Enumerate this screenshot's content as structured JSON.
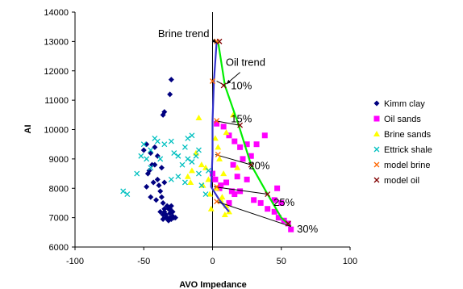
{
  "chart_data": {
    "type": "scatter",
    "xlabel": "AVO Impedance",
    "ylabel": "AI",
    "xlim": [
      -100,
      100
    ],
    "ylim": [
      6000,
      14000
    ],
    "xticks": [
      -100,
      -50,
      0,
      50,
      100
    ],
    "yticks": [
      6000,
      7000,
      8000,
      9000,
      10000,
      11000,
      12000,
      13000,
      14000
    ],
    "grid": false,
    "legend_position": "right",
    "series": [
      {
        "name": "Kimm clay",
        "marker": "diamond",
        "color": "#000080",
        "points": [
          [
            -30,
            11700
          ],
          [
            -31,
            11200
          ],
          [
            -35,
            10600
          ],
          [
            -36,
            10500
          ],
          [
            -50,
            9300
          ],
          [
            -48,
            9500
          ],
          [
            -45,
            9200
          ],
          [
            -42,
            9400
          ],
          [
            -40,
            9100
          ],
          [
            -44,
            8800
          ],
          [
            -46,
            8600
          ],
          [
            -47,
            8500
          ],
          [
            -43,
            8200
          ],
          [
            -48,
            8050
          ],
          [
            -45,
            7700
          ],
          [
            -41,
            7600
          ],
          [
            -38,
            7900
          ],
          [
            -36,
            7500
          ],
          [
            -35,
            7300
          ],
          [
            -34,
            7100
          ],
          [
            -33,
            7000
          ],
          [
            -32,
            6900
          ],
          [
            -31,
            7000
          ],
          [
            -30,
            6950
          ],
          [
            -29,
            7050
          ],
          [
            -28,
            7000
          ],
          [
            -27,
            7000
          ],
          [
            -30,
            7200
          ],
          [
            -32,
            7300
          ],
          [
            -35,
            7200
          ],
          [
            -36,
            7100
          ],
          [
            -33,
            7400
          ],
          [
            -30,
            7400
          ],
          [
            -37,
            7700
          ],
          [
            -39,
            8100
          ],
          [
            -37,
            8700
          ],
          [
            -35,
            8200
          ],
          [
            -42,
            8800
          ],
          [
            -40,
            8300
          ],
          [
            -38,
            7200
          ],
          [
            -36,
            6950
          ],
          [
            -31,
            7150
          ],
          [
            -34,
            7000
          ],
          [
            -29,
            7200
          ],
          [
            -31,
            7300
          ]
        ]
      },
      {
        "name": "Oil sands",
        "marker": "square",
        "color": "#ff00ff",
        "points": [
          [
            3,
            10200
          ],
          [
            8,
            10100
          ],
          [
            12,
            9800
          ],
          [
            16,
            9600
          ],
          [
            20,
            9400
          ],
          [
            25,
            9500
          ],
          [
            32,
            9500
          ],
          [
            38,
            9800
          ],
          [
            28,
            9100
          ],
          [
            22,
            9000
          ],
          [
            15,
            8800
          ],
          [
            18,
            8400
          ],
          [
            10,
            8200
          ],
          [
            0,
            8500
          ],
          [
            2,
            8300
          ],
          [
            6,
            8100
          ],
          [
            14,
            7900
          ],
          [
            16,
            7800
          ],
          [
            25,
            8300
          ],
          [
            30,
            7600
          ],
          [
            35,
            7500
          ],
          [
            40,
            7300
          ],
          [
            45,
            7200
          ],
          [
            48,
            7000
          ],
          [
            47,
            8000
          ],
          [
            45,
            7600
          ],
          [
            50,
            7500
          ],
          [
            52,
            6900
          ],
          [
            55,
            6800
          ],
          [
            57,
            6600
          ],
          [
            5,
            8000
          ],
          [
            12,
            7500
          ],
          [
            20,
            7900
          ]
        ]
      },
      {
        "name": "Brine sands",
        "marker": "triangle",
        "color": "#ffff00",
        "points": [
          [
            -10,
            10400
          ],
          [
            -12,
            9200
          ],
          [
            -15,
            8600
          ],
          [
            -8,
            8800
          ],
          [
            -5,
            8700
          ],
          [
            -3,
            8300
          ],
          [
            -7,
            8100
          ],
          [
            -2,
            7800
          ],
          [
            5,
            9000
          ],
          [
            8,
            8500
          ],
          [
            3,
            8000
          ],
          [
            7,
            7700
          ],
          [
            10,
            7400
          ],
          [
            12,
            7200
          ],
          [
            9,
            7100
          ],
          [
            6,
            7600
          ],
          [
            -1,
            7300
          ],
          [
            2,
            9700
          ],
          [
            10,
            9900
          ],
          [
            4,
            9400
          ],
          [
            15,
            10500
          ],
          [
            -18,
            8400
          ],
          [
            -16,
            8200
          ],
          [
            18,
            8700
          ]
        ]
      },
      {
        "name": "Ettrick shale",
        "marker": "x",
        "color": "#00c0c0",
        "points": [
          [
            -65,
            7900
          ],
          [
            -62,
            7800
          ],
          [
            -55,
            8500
          ],
          [
            -50,
            9500
          ],
          [
            -48,
            9000
          ],
          [
            -45,
            8700
          ],
          [
            -42,
            9700
          ],
          [
            -40,
            9600
          ],
          [
            -38,
            9000
          ],
          [
            -35,
            9500
          ],
          [
            -30,
            9600
          ],
          [
            -28,
            9200
          ],
          [
            -25,
            9100
          ],
          [
            -22,
            8800
          ],
          [
            -20,
            9400
          ],
          [
            -18,
            9000
          ],
          [
            -15,
            9800
          ],
          [
            -12,
            9100
          ],
          [
            -10,
            8500
          ],
          [
            -8,
            8100
          ],
          [
            -5,
            7800
          ],
          [
            -3,
            8600
          ],
          [
            -15,
            8900
          ],
          [
            -25,
            8400
          ],
          [
            -30,
            8300
          ],
          [
            -45,
            9300
          ],
          [
            -20,
            8200
          ],
          [
            -52,
            9100
          ],
          [
            -18,
            9700
          ],
          [
            -10,
            9300
          ]
        ]
      },
      {
        "name": "model brine",
        "marker": "x",
        "color": "#ff6600",
        "points": [
          [
            3,
            13000
          ],
          [
            0,
            11650
          ],
          [
            3,
            10300
          ],
          [
            4,
            9150
          ],
          [
            3,
            8050
          ],
          [
            3,
            7550
          ]
        ]
      },
      {
        "name": "model oil",
        "marker": "x",
        "color": "#800000",
        "points": [
          [
            5,
            13000
          ],
          [
            8,
            11500
          ],
          [
            20,
            10150
          ],
          [
            28,
            8800
          ],
          [
            40,
            7800
          ],
          [
            55,
            6800
          ]
        ]
      }
    ],
    "lines": [
      {
        "color": "#3333cc",
        "points": [
          [
            3,
            13000
          ],
          [
            1,
            11650
          ],
          [
            0,
            10300
          ],
          [
            0,
            9150
          ],
          [
            -1,
            8050
          ],
          [
            5,
            7600
          ],
          [
            12,
            7200
          ]
        ]
      },
      {
        "color": "#00ee00",
        "points": [
          [
            4,
            13000
          ],
          [
            9,
            11500
          ],
          [
            19,
            10150
          ],
          [
            28,
            8800
          ],
          [
            40,
            7800
          ],
          [
            50,
            7000
          ],
          [
            57,
            6700
          ]
        ]
      },
      {
        "color": "#000000",
        "points": [
          [
            3,
            11650
          ],
          [
            9,
            11500
          ]
        ]
      },
      {
        "color": "#000000",
        "points": [
          [
            2,
            10300
          ],
          [
            19,
            10150
          ]
        ]
      },
      {
        "color": "#000000",
        "points": [
          [
            2,
            9150
          ],
          [
            28,
            8800
          ]
        ]
      },
      {
        "color": "#000000",
        "points": [
          [
            1,
            8050
          ],
          [
            40,
            7800
          ]
        ]
      },
      {
        "color": "#000000",
        "points": [
          [
            3,
            7550
          ],
          [
            57,
            6700
          ]
        ]
      }
    ],
    "annotations": [
      {
        "text": "Brine trend",
        "x": -21,
        "y": 13150
      },
      {
        "text": "Oil trend",
        "x": 24,
        "y": 12170
      },
      {
        "text": "10%",
        "x": 21,
        "y": 11380
      },
      {
        "text": "15%",
        "x": 21,
        "y": 10250
      },
      {
        "text": "20%",
        "x": 34,
        "y": 8650
      },
      {
        "text": "25%",
        "x": 52,
        "y": 7400
      },
      {
        "text": "30%",
        "x": 69,
        "y": 6500
      }
    ]
  }
}
